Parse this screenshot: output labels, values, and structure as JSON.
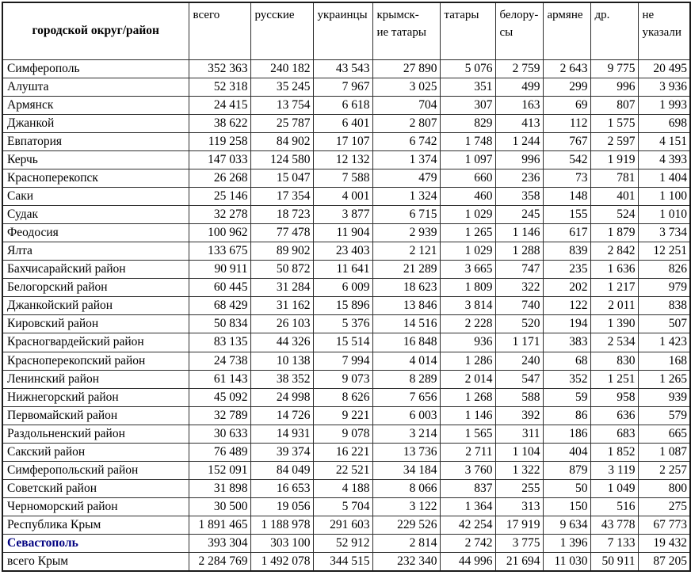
{
  "colors": {
    "text": "#000000",
    "emphasis_region_text": "#000080",
    "border": "#2e2e2e",
    "background": "#ffffff"
  },
  "chart_data": {
    "type": "table",
    "columns": [
      "городской округ/район",
      "всего",
      "русские",
      "украинцы",
      "крымск-\nие татары",
      "татары",
      "белору-\nсы",
      "армяне",
      "др.",
      "не\nуказали"
    ],
    "rows": [
      {
        "region": "Симферополь",
        "values": [
          "352 363",
          "240 182",
          "43 543",
          "27 890",
          "5 076",
          "2 759",
          "2 643",
          "9 775",
          "20 495"
        ]
      },
      {
        "region": "Алушта",
        "values": [
          "52 318",
          "35 245",
          "7 967",
          "3 025",
          "351",
          "499",
          "299",
          "996",
          "3 936"
        ]
      },
      {
        "region": "Армянск",
        "values": [
          "24 415",
          "13 754",
          "6 618",
          "704",
          "307",
          "163",
          "69",
          "807",
          "1 993"
        ]
      },
      {
        "region": "Джанкой",
        "values": [
          "38 622",
          "25 787",
          "6 401",
          "2 807",
          "829",
          "413",
          "112",
          "1 575",
          "698"
        ]
      },
      {
        "region": "Евпатория",
        "values": [
          "119 258",
          "84 902",
          "17 107",
          "6 742",
          "1 748",
          "1 244",
          "767",
          "2 597",
          "4 151"
        ]
      },
      {
        "region": "Керчь",
        "values": [
          "147 033",
          "124 580",
          "12 132",
          "1 374",
          "1 097",
          "996",
          "542",
          "1 919",
          "4 393"
        ]
      },
      {
        "region": "Красноперекопск",
        "values": [
          "26 268",
          "15 047",
          "7 588",
          "479",
          "660",
          "236",
          "73",
          "781",
          "1 404"
        ]
      },
      {
        "region": "Саки",
        "values": [
          "25 146",
          "17 354",
          "4 001",
          "1 324",
          "460",
          "358",
          "148",
          "401",
          "1 100"
        ]
      },
      {
        "region": "Судак",
        "values": [
          "32 278",
          "18 723",
          "3 877",
          "6 715",
          "1 029",
          "245",
          "155",
          "524",
          "1 010"
        ]
      },
      {
        "region": "Феодосия",
        "values": [
          "100 962",
          "77 478",
          "11 904",
          "2 939",
          "1 265",
          "1 146",
          "617",
          "1 879",
          "3 734"
        ]
      },
      {
        "region": "Ялта",
        "values": [
          "133 675",
          "89 902",
          "23 403",
          "2 121",
          "1 029",
          "1 288",
          "839",
          "2 842",
          "12 251"
        ]
      },
      {
        "region": "Бахчисарайский район",
        "values": [
          "90 911",
          "50 872",
          "11 641",
          "21 289",
          "3 665",
          "747",
          "235",
          "1 636",
          "826"
        ]
      },
      {
        "region": "Белогорский район",
        "values": [
          "60 445",
          "31 284",
          "6 009",
          "18 623",
          "1 809",
          "322",
          "202",
          "1 217",
          "979"
        ]
      },
      {
        "region": "Джанкойский район",
        "values": [
          "68 429",
          "31 162",
          "15 896",
          "13 846",
          "3 814",
          "740",
          "122",
          "2 011",
          "838"
        ]
      },
      {
        "region": "Кировский район",
        "values": [
          "50 834",
          "26 103",
          "5 376",
          "14 516",
          "2 228",
          "520",
          "194",
          "1 390",
          "507"
        ]
      },
      {
        "region": "Красногвардейский район",
        "values": [
          "83 135",
          "44 326",
          "15 514",
          "16 848",
          "936",
          "1 171",
          "383",
          "2 534",
          "1 423"
        ]
      },
      {
        "region": "Красноперекопский район",
        "values": [
          "24 738",
          "10 138",
          "7 994",
          "4 014",
          "1 286",
          "240",
          "68",
          "830",
          "168"
        ]
      },
      {
        "region": "Ленинский район",
        "values": [
          "61 143",
          "38 352",
          "9 073",
          "8 289",
          "2 014",
          "547",
          "352",
          "1 251",
          "1 265"
        ]
      },
      {
        "region": "Нижнегорский район",
        "values": [
          "45 092",
          "24 998",
          "8 626",
          "7 656",
          "1 268",
          "588",
          "59",
          "958",
          "939"
        ]
      },
      {
        "region": "Первомайский район",
        "values": [
          "32 789",
          "14 726",
          "9 221",
          "6 003",
          "1 146",
          "392",
          "86",
          "636",
          "579"
        ]
      },
      {
        "region": "Раздольненский район",
        "values": [
          "30 633",
          "14 931",
          "9 078",
          "3 214",
          "1 565",
          "311",
          "186",
          "683",
          "665"
        ]
      },
      {
        "region": "Сакский район",
        "values": [
          "76 489",
          "39 374",
          "16 221",
          "13 736",
          "2 711",
          "1 104",
          "404",
          "1 852",
          "1 087"
        ]
      },
      {
        "region": "Симферопольский район",
        "values": [
          "152 091",
          "84 049",
          "22 521",
          "34 184",
          "3 760",
          "1 322",
          "879",
          "3 119",
          "2 257"
        ]
      },
      {
        "region": "Советский район",
        "values": [
          "31 898",
          "16 653",
          "4 188",
          "8 066",
          "837",
          "255",
          "50",
          "1 049",
          "800"
        ]
      },
      {
        "region": "Черноморский район",
        "values": [
          "30 500",
          "19 056",
          "5 704",
          "3 122",
          "1 364",
          "313",
          "150",
          "516",
          "275"
        ]
      },
      {
        "region": "Республика Крым",
        "values": [
          "1 891 465",
          "1 188 978",
          "291 603",
          "229 526",
          "42 254",
          "17 919",
          "9 634",
          "43 778",
          "67 773"
        ]
      },
      {
        "region": "Севастополь",
        "emphasis": true,
        "values": [
          "393 304",
          "303 100",
          "52 912",
          "2 814",
          "2 742",
          "3 775",
          "1 396",
          "7 133",
          "19 432"
        ]
      },
      {
        "region": "всего Крым",
        "values": [
          "2 284 769",
          "1 492 078",
          "344 515",
          "232 340",
          "44 996",
          "21 694",
          "11 030",
          "50 911",
          "87 205"
        ]
      }
    ]
  }
}
